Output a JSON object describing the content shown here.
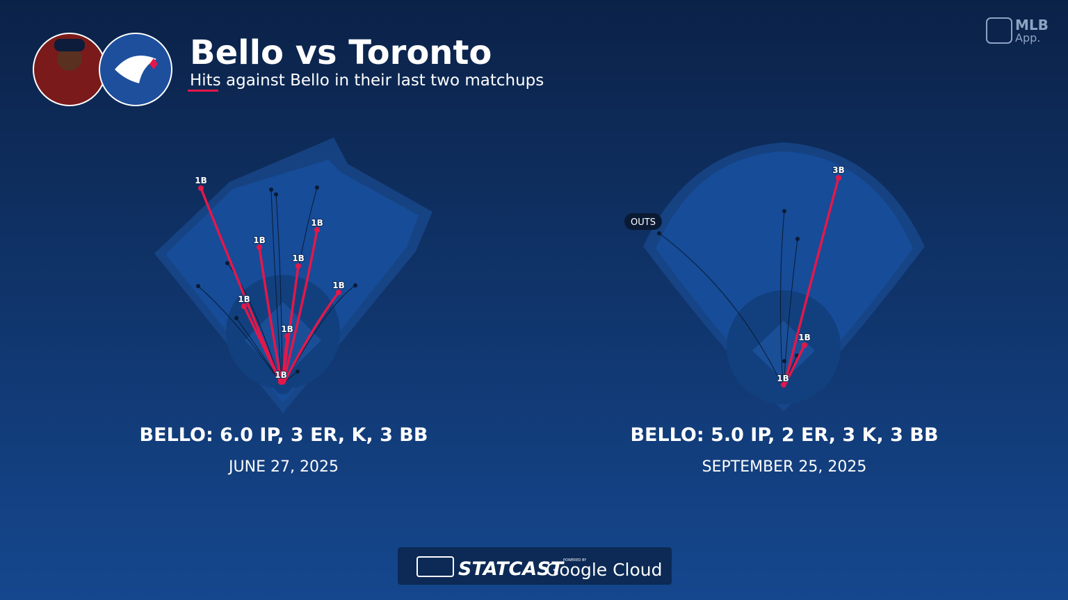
{
  "header": {
    "title": "Bello vs Toronto",
    "subtitle": "Hits against Bello in their last two matchups"
  },
  "brand": {
    "mlb": "MLB",
    "app": "App."
  },
  "panels": [
    {
      "stat_line": "BELLO: 6.0 IP, 3 ER, K, 3 BB",
      "date": "JUNE 27, 2025",
      "hits": [
        "1B",
        "1B",
        "1B",
        "1B",
        "1B",
        "1B",
        "1B",
        "1B"
      ]
    },
    {
      "stat_line": "BELLO: 5.0 IP, 2 ER, 3 K, 3 BB",
      "date": "SEPTEMBER 25, 2025",
      "outs_label": "OUTS",
      "hits": [
        "3B",
        "1B",
        "1B"
      ]
    }
  ],
  "footer": {
    "statcast": "STATCAST",
    "powered_by": "POWERED BY",
    "google_cloud": "Google Cloud"
  }
}
